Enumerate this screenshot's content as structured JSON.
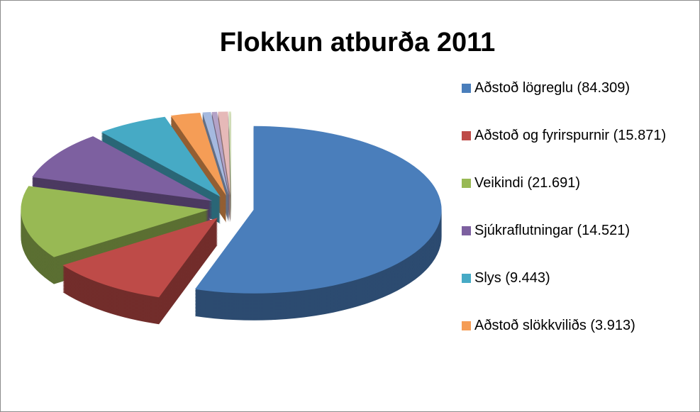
{
  "chart_data": {
    "type": "pie3d",
    "title": "Flokkun atburða 2011",
    "categories": [
      "Aðstoð lögreglu (84.309)",
      "Aðstoð og fyrirspurnir (15.871)",
      "Veikindi (21.691)",
      "Sjúkraflutningar (14.521)",
      "Slys (9.443)",
      "Aðstoð slökkviliðs (3.913)",
      null,
      null,
      null,
      null
    ],
    "values": [
      84309,
      15871,
      21691,
      14521,
      9443,
      3913,
      1100,
      700,
      1300,
      300
    ],
    "colors": [
      "#4a7ebb",
      "#be4b48",
      "#98b954",
      "#7d60a0",
      "#46aac5",
      "#f59d56",
      "#a5b9df",
      "#b3a2c7",
      "#e6b9b8",
      "#d7e4bd"
    ],
    "legend": "right"
  }
}
